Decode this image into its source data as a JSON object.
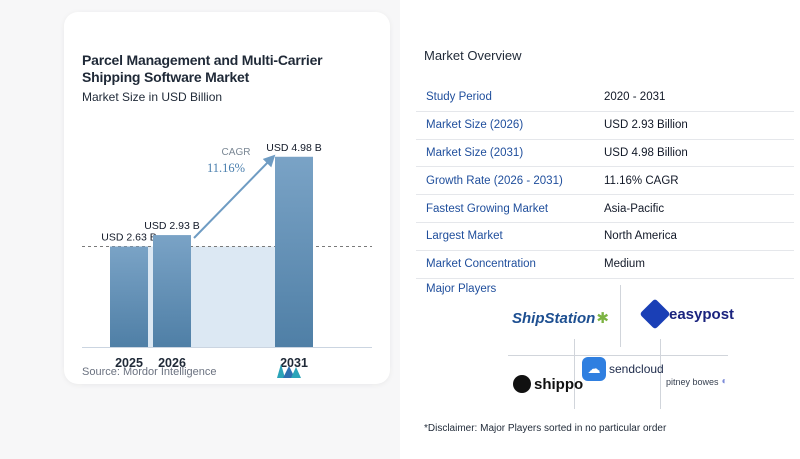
{
  "chart": {
    "title": "Parcel Management and Multi-Carrier Shipping Software Market",
    "subtitle": "Market Size in USD Billion",
    "source": "Source: Mordor Intelligence",
    "cagr_label": "CAGR",
    "cagr_value": "11.16%"
  },
  "chart_data": {
    "type": "bar",
    "title": "Parcel Management and Multi-Carrier Shipping Software Market",
    "subtitle": "Market Size in USD Billion",
    "categories": [
      "2025",
      "2026",
      "2031"
    ],
    "values": [
      2.63,
      2.93,
      4.98
    ],
    "data_labels": [
      "USD 2.63 B",
      "USD 2.93 B",
      "USD 4.98 B"
    ],
    "annotation": {
      "label": "CAGR",
      "value": "11.16%"
    },
    "grid": false,
    "colors": {
      "bar_top": "#7aa3c6",
      "bar_bottom": "#4f7fa6",
      "shade": "#dce8f3",
      "arrow": "#6f9cc3"
    }
  },
  "overview": {
    "title": "Market Overview",
    "rows": [
      {
        "label": "Study Period",
        "value": "2020 - 2031"
      },
      {
        "label": "Market Size (2026)",
        "value": "USD 2.93 Billion"
      },
      {
        "label": "Market Size (2031)",
        "value": "USD 4.98 Billion"
      },
      {
        "label": "Growth Rate (2026 - 2031)",
        "value": "11.16% CAGR"
      },
      {
        "label": "Fastest Growing Market",
        "value": "Asia-Pacific"
      },
      {
        "label": "Largest Market",
        "value": "North America"
      },
      {
        "label": "Market Concentration",
        "value": "Medium"
      }
    ],
    "players_title": "Major Players",
    "players": {
      "shipstation": "ShipStation",
      "easypost": "easypost",
      "shippo": "shippo",
      "sendcloud": "sendcloud",
      "pitney": "pitney bowes"
    },
    "disclaimer": "*Disclaimer: Major Players sorted in no particular order"
  }
}
